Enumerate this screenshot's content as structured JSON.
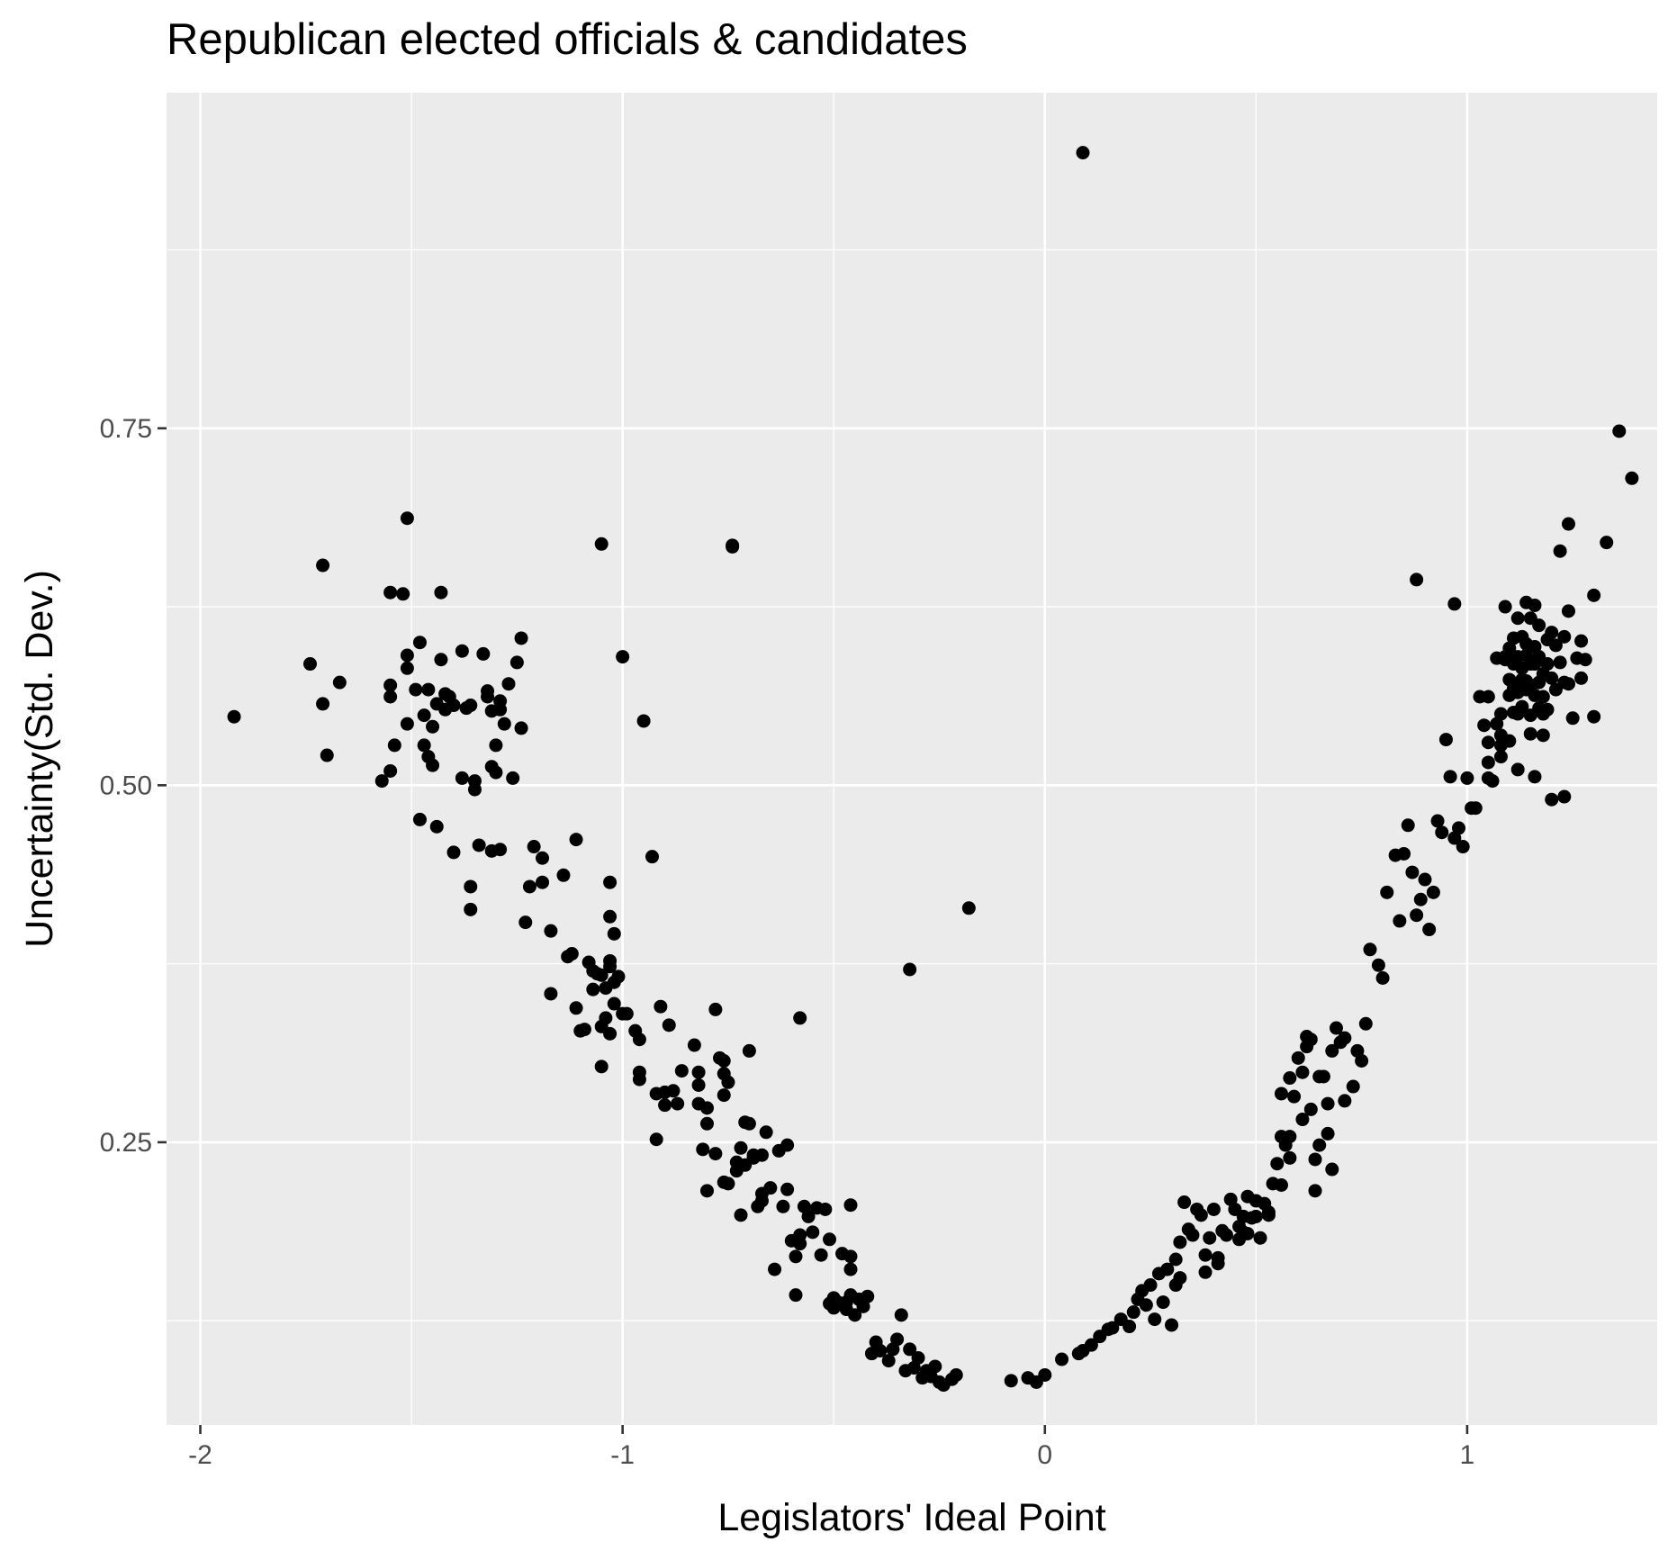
{
  "chart_data": {
    "type": "scatter",
    "title": "Republican elected officials & candidates",
    "xlabel": "Legislators' Ideal Point",
    "ylabel": "Uncertainty(Std. Dev.)",
    "xlim": [
      -2.08,
      1.45
    ],
    "ylim": [
      0.052,
      0.985
    ],
    "x_ticks": [
      -2,
      -1,
      0,
      1
    ],
    "x_tick_labels": [
      "-2",
      "-1",
      "0",
      "1"
    ],
    "y_ticks": [
      0.25,
      0.5,
      0.75
    ],
    "y_tick_labels": [
      "0.25",
      "0.50",
      "0.75"
    ],
    "grid": true,
    "legend": "none",
    "colors": {
      "panel": "#ebebeb",
      "grid": "#ffffff",
      "point": "#000000",
      "tick_label": "#4d4d4d"
    },
    "points": [
      [
        -1.92,
        0.548
      ],
      [
        -1.74,
        0.585
      ],
      [
        -1.71,
        0.654
      ],
      [
        -1.71,
        0.557
      ],
      [
        -1.7,
        0.521
      ],
      [
        -1.67,
        0.572
      ],
      [
        -1.57,
        0.503
      ],
      [
        -1.55,
        0.635
      ],
      [
        -1.55,
        0.57
      ],
      [
        -1.55,
        0.562
      ],
      [
        -1.55,
        0.51
      ],
      [
        -1.54,
        0.528
      ],
      [
        -1.51,
        0.687
      ],
      [
        -1.51,
        0.591
      ],
      [
        -1.51,
        0.582
      ],
      [
        -1.51,
        0.543
      ],
      [
        -1.49,
        0.567
      ],
      [
        -1.48,
        0.476
      ],
      [
        -1.48,
        0.6
      ],
      [
        -1.47,
        0.528
      ],
      [
        -1.47,
        0.549
      ],
      [
        -1.46,
        0.567
      ],
      [
        -1.46,
        0.52
      ],
      [
        -1.45,
        0.541
      ],
      [
        -1.45,
        0.514
      ],
      [
        -1.44,
        0.471
      ],
      [
        -1.44,
        0.557
      ],
      [
        -1.43,
        0.635
      ],
      [
        -1.43,
        0.588
      ],
      [
        -1.42,
        0.553
      ],
      [
        -1.42,
        0.564
      ],
      [
        -1.41,
        0.562
      ],
      [
        -1.4,
        0.556
      ],
      [
        -1.4,
        0.453
      ],
      [
        -1.38,
        0.594
      ],
      [
        -1.38,
        0.505
      ],
      [
        -1.37,
        0.554
      ],
      [
        -1.36,
        0.556
      ],
      [
        -1.36,
        0.429
      ],
      [
        -1.36,
        0.413
      ],
      [
        -1.35,
        0.497
      ],
      [
        -1.35,
        0.503
      ],
      [
        -1.34,
        0.458
      ],
      [
        -1.33,
        0.592
      ],
      [
        -1.32,
        0.566
      ],
      [
        -1.32,
        0.562
      ],
      [
        -1.31,
        0.454
      ],
      [
        -1.31,
        0.513
      ],
      [
        -1.31,
        0.552
      ],
      [
        -1.3,
        0.509
      ],
      [
        -1.3,
        0.528
      ],
      [
        -1.29,
        0.559
      ],
      [
        -1.29,
        0.553
      ],
      [
        -1.29,
        0.455
      ],
      [
        -1.28,
        0.543
      ],
      [
        -1.27,
        0.571
      ],
      [
        -1.26,
        0.505
      ],
      [
        -1.25,
        0.586
      ],
      [
        -1.24,
        0.54
      ],
      [
        -1.24,
        0.603
      ],
      [
        -1.23,
        0.404
      ],
      [
        -1.22,
        0.429
      ],
      [
        -1.21,
        0.457
      ],
      [
        -1.19,
        0.432
      ],
      [
        -1.19,
        0.449
      ],
      [
        -1.17,
        0.398
      ],
      [
        -1.17,
        0.354
      ],
      [
        -1.14,
        0.437
      ],
      [
        -1.13,
        0.38
      ],
      [
        -1.12,
        0.382
      ],
      [
        -1.11,
        0.462
      ],
      [
        -1.11,
        0.344
      ],
      [
        -1.1,
        0.328
      ],
      [
        -1.09,
        0.329
      ],
      [
        -1.08,
        0.376
      ],
      [
        -1.07,
        0.357
      ],
      [
        -1.07,
        0.37
      ],
      [
        -1.06,
        0.368
      ],
      [
        -1.05,
        0.669
      ],
      [
        -1.05,
        0.367
      ],
      [
        -1.05,
        0.303
      ],
      [
        -1.05,
        0.331
      ],
      [
        -1.04,
        0.337
      ],
      [
        -1.04,
        0.358
      ],
      [
        -1.03,
        0.373
      ],
      [
        -1.03,
        0.377
      ],
      [
        -1.03,
        0.408
      ],
      [
        -1.03,
        0.432
      ],
      [
        -1.03,
        0.326
      ],
      [
        -1.02,
        0.347
      ],
      [
        -1.02,
        0.396
      ],
      [
        -1.02,
        0.362
      ],
      [
        -1.01,
        0.366
      ],
      [
        -1.0,
        0.34
      ],
      [
        -1.0,
        0.59
      ],
      [
        -0.99,
        0.34
      ],
      [
        -0.97,
        0.328
      ],
      [
        -0.96,
        0.322
      ],
      [
        -0.96,
        0.294
      ],
      [
        -0.96,
        0.299
      ],
      [
        -0.95,
        0.545
      ],
      [
        -0.93,
        0.45
      ],
      [
        -0.92,
        0.284
      ],
      [
        -0.92,
        0.252
      ],
      [
        -0.91,
        0.345
      ],
      [
        -0.9,
        0.276
      ],
      [
        -0.9,
        0.285
      ],
      [
        -0.89,
        0.332
      ],
      [
        -0.88,
        0.286
      ],
      [
        -0.87,
        0.277
      ],
      [
        -0.86,
        0.3
      ],
      [
        -0.83,
        0.318
      ],
      [
        -0.82,
        0.277
      ],
      [
        -0.82,
        0.299
      ],
      [
        -0.82,
        0.29
      ],
      [
        -0.81,
        0.245
      ],
      [
        -0.8,
        0.274
      ],
      [
        -0.8,
        0.263
      ],
      [
        -0.8,
        0.216
      ],
      [
        -0.78,
        0.343
      ],
      [
        -0.78,
        0.242
      ],
      [
        -0.77,
        0.309
      ],
      [
        -0.76,
        0.298
      ],
      [
        -0.76,
        0.307
      ],
      [
        -0.76,
        0.283
      ],
      [
        -0.76,
        0.222
      ],
      [
        -0.75,
        0.292
      ],
      [
        -0.75,
        0.221
      ],
      [
        -0.74,
        0.668
      ],
      [
        -0.73,
        0.236
      ],
      [
        -0.73,
        0.23
      ],
      [
        -0.72,
        0.199
      ],
      [
        -0.72,
        0.246
      ],
      [
        -0.71,
        0.234
      ],
      [
        -0.71,
        0.264
      ],
      [
        -0.7,
        0.263
      ],
      [
        -0.7,
        0.314
      ],
      [
        -0.69,
        0.241
      ],
      [
        -0.69,
        0.239
      ],
      [
        -0.68,
        0.205
      ],
      [
        -0.67,
        0.209
      ],
      [
        -0.67,
        0.214
      ],
      [
        -0.67,
        0.241
      ],
      [
        -0.66,
        0.257
      ],
      [
        -0.65,
        0.218
      ],
      [
        -0.64,
        0.161
      ],
      [
        -0.63,
        0.244
      ],
      [
        -0.62,
        0.205
      ],
      [
        -0.61,
        0.217
      ],
      [
        -0.61,
        0.248
      ],
      [
        -0.6,
        0.181
      ],
      [
        -0.59,
        0.17
      ],
      [
        -0.59,
        0.143
      ],
      [
        -0.58,
        0.337
      ],
      [
        -0.58,
        0.185
      ],
      [
        -0.58,
        0.179
      ],
      [
        -0.57,
        0.205
      ],
      [
        -0.56,
        0.198
      ],
      [
        -0.55,
        0.187
      ],
      [
        -0.54,
        0.204
      ],
      [
        -0.53,
        0.171
      ],
      [
        -0.52,
        0.203
      ],
      [
        -0.51,
        0.182
      ],
      [
        -0.51,
        0.137
      ],
      [
        -0.5,
        0.134
      ],
      [
        -0.5,
        0.141
      ],
      [
        -0.49,
        0.138
      ],
      [
        -0.48,
        0.172
      ],
      [
        -0.47,
        0.133
      ],
      [
        -0.47,
        0.138
      ],
      [
        -0.46,
        0.206
      ],
      [
        -0.46,
        0.161
      ],
      [
        -0.46,
        0.17
      ],
      [
        -0.46,
        0.143
      ],
      [
        -0.45,
        0.129
      ],
      [
        -0.44,
        0.14
      ],
      [
        -0.43,
        0.135
      ],
      [
        -0.42,
        0.142
      ],
      [
        -0.41,
        0.102
      ],
      [
        -0.4,
        0.11
      ],
      [
        -0.39,
        0.104
      ],
      [
        -0.37,
        0.097
      ],
      [
        -0.36,
        0.105
      ],
      [
        -0.35,
        0.112
      ],
      [
        -0.34,
        0.129
      ],
      [
        -0.33,
        0.09
      ],
      [
        -0.32,
        0.105
      ],
      [
        -0.32,
        0.371
      ],
      [
        -0.31,
        0.092
      ],
      [
        -0.3,
        0.099
      ],
      [
        -0.29,
        0.085
      ],
      [
        -0.28,
        0.09
      ],
      [
        -0.27,
        0.086
      ],
      [
        -0.26,
        0.093
      ],
      [
        -0.25,
        0.082
      ],
      [
        -0.24,
        0.08
      ],
      [
        -0.22,
        0.084
      ],
      [
        -0.21,
        0.087
      ],
      [
        -0.18,
        0.414
      ],
      [
        -0.08,
        0.083
      ],
      [
        -0.04,
        0.085
      ],
      [
        -0.02,
        0.082
      ],
      [
        0.0,
        0.087
      ],
      [
        0.04,
        0.098
      ],
      [
        0.08,
        0.102
      ],
      [
        0.09,
        0.104
      ],
      [
        0.11,
        0.108
      ],
      [
        0.13,
        0.114
      ],
      [
        0.15,
        0.119
      ],
      [
        0.16,
        0.12
      ],
      [
        0.18,
        0.126
      ],
      [
        0.2,
        0.121
      ],
      [
        0.21,
        0.131
      ],
      [
        0.22,
        0.14
      ],
      [
        0.23,
        0.146
      ],
      [
        0.24,
        0.136
      ],
      [
        0.25,
        0.15
      ],
      [
        0.26,
        0.126
      ],
      [
        0.27,
        0.158
      ],
      [
        0.28,
        0.138
      ],
      [
        0.29,
        0.161
      ],
      [
        0.3,
        0.122
      ],
      [
        0.31,
        0.15
      ],
      [
        0.31,
        0.168
      ],
      [
        0.32,
        0.155
      ],
      [
        0.32,
        0.18
      ],
      [
        0.33,
        0.208
      ],
      [
        0.34,
        0.189
      ],
      [
        0.35,
        0.185
      ],
      [
        0.36,
        0.203
      ],
      [
        0.37,
        0.199
      ],
      [
        0.38,
        0.159
      ],
      [
        0.38,
        0.171
      ],
      [
        0.39,
        0.183
      ],
      [
        0.4,
        0.203
      ],
      [
        0.41,
        0.169
      ],
      [
        0.41,
        0.165
      ],
      [
        0.42,
        0.188
      ],
      [
        0.43,
        0.185
      ],
      [
        0.44,
        0.21
      ],
      [
        0.45,
        0.203
      ],
      [
        0.46,
        0.182
      ],
      [
        0.46,
        0.191
      ],
      [
        0.47,
        0.198
      ],
      [
        0.47,
        0.187
      ],
      [
        0.48,
        0.186
      ],
      [
        0.48,
        0.212
      ],
      [
        0.49,
        0.197
      ],
      [
        0.5,
        0.198
      ],
      [
        0.5,
        0.209
      ],
      [
        0.51,
        0.183
      ],
      [
        0.52,
        0.207
      ],
      [
        0.53,
        0.201
      ],
      [
        0.53,
        0.199
      ],
      [
        0.54,
        0.221
      ],
      [
        0.55,
        0.235
      ],
      [
        0.56,
        0.22
      ],
      [
        0.56,
        0.254
      ],
      [
        0.56,
        0.284
      ],
      [
        0.57,
        0.248
      ],
      [
        0.58,
        0.239
      ],
      [
        0.58,
        0.295
      ],
      [
        0.58,
        0.254
      ],
      [
        0.59,
        0.282
      ],
      [
        0.6,
        0.309
      ],
      [
        0.61,
        0.299
      ],
      [
        0.61,
        0.266
      ],
      [
        0.62,
        0.317
      ],
      [
        0.62,
        0.324
      ],
      [
        0.63,
        0.273
      ],
      [
        0.63,
        0.322
      ],
      [
        0.64,
        0.216
      ],
      [
        0.64,
        0.238
      ],
      [
        0.65,
        0.248
      ],
      [
        0.65,
        0.296
      ],
      [
        0.66,
        0.296
      ],
      [
        0.67,
        0.277
      ],
      [
        0.67,
        0.256
      ],
      [
        0.68,
        0.231
      ],
      [
        0.68,
        0.314
      ],
      [
        0.69,
        0.33
      ],
      [
        0.7,
        0.32
      ],
      [
        0.71,
        0.323
      ],
      [
        0.71,
        0.279
      ],
      [
        0.73,
        0.289
      ],
      [
        0.74,
        0.314
      ],
      [
        0.75,
        0.307
      ],
      [
        0.76,
        0.333
      ],
      [
        0.77,
        0.385
      ],
      [
        0.79,
        0.374
      ],
      [
        0.8,
        0.365
      ],
      [
        0.81,
        0.425
      ],
      [
        0.83,
        0.451
      ],
      [
        0.84,
        0.405
      ],
      [
        0.85,
        0.452
      ],
      [
        0.86,
        0.472
      ],
      [
        0.87,
        0.439
      ],
      [
        0.88,
        0.644
      ],
      [
        0.88,
        0.409
      ],
      [
        0.89,
        0.42
      ],
      [
        0.9,
        0.434
      ],
      [
        0.91,
        0.399
      ],
      [
        0.92,
        0.425
      ],
      [
        0.93,
        0.475
      ],
      [
        0.94,
        0.467
      ],
      [
        0.95,
        0.532
      ],
      [
        0.96,
        0.506
      ],
      [
        0.97,
        0.463
      ],
      [
        0.97,
        0.627
      ],
      [
        0.98,
        0.47
      ],
      [
        0.99,
        0.457
      ],
      [
        1.0,
        0.505
      ],
      [
        1.01,
        0.484
      ],
      [
        1.02,
        0.484
      ],
      [
        1.03,
        0.562
      ],
      [
        1.04,
        0.542
      ],
      [
        1.05,
        0.53
      ],
      [
        1.05,
        0.562
      ],
      [
        1.05,
        0.516
      ],
      [
        1.05,
        0.505
      ],
      [
        1.06,
        0.503
      ],
      [
        1.07,
        0.543
      ],
      [
        1.07,
        0.589
      ],
      [
        1.08,
        0.52
      ],
      [
        1.08,
        0.528
      ],
      [
        1.08,
        0.535
      ],
      [
        1.08,
        0.55
      ],
      [
        1.09,
        0.588
      ],
      [
        1.09,
        0.625
      ],
      [
        1.09,
        0.59
      ],
      [
        1.1,
        0.563
      ],
      [
        1.1,
        0.531
      ],
      [
        1.1,
        0.574
      ],
      [
        1.1,
        0.596
      ],
      [
        1.11,
        0.551
      ],
      [
        1.11,
        0.568
      ],
      [
        1.11,
        0.585
      ],
      [
        1.11,
        0.603
      ],
      [
        1.12,
        0.57
      ],
      [
        1.12,
        0.565
      ],
      [
        1.12,
        0.59
      ],
      [
        1.12,
        0.511
      ],
      [
        1.12,
        0.617
      ],
      [
        1.12,
        0.55
      ],
      [
        1.13,
        0.574
      ],
      [
        1.13,
        0.555
      ],
      [
        1.13,
        0.582
      ],
      [
        1.13,
        0.604
      ],
      [
        1.14,
        0.573
      ],
      [
        1.14,
        0.628
      ],
      [
        1.14,
        0.591
      ],
      [
        1.14,
        0.567
      ],
      [
        1.14,
        0.599
      ],
      [
        1.15,
        0.585
      ],
      [
        1.15,
        0.549
      ],
      [
        1.15,
        0.617
      ],
      [
        1.15,
        0.57
      ],
      [
        1.15,
        0.536
      ],
      [
        1.16,
        0.585
      ],
      [
        1.16,
        0.563
      ],
      [
        1.16,
        0.626
      ],
      [
        1.16,
        0.597
      ],
      [
        1.16,
        0.506
      ],
      [
        1.17,
        0.572
      ],
      [
        1.17,
        0.612
      ],
      [
        1.17,
        0.59
      ],
      [
        1.17,
        0.554
      ],
      [
        1.18,
        0.562
      ],
      [
        1.18,
        0.55
      ],
      [
        1.18,
        0.535
      ],
      [
        1.18,
        0.578
      ],
      [
        1.19,
        0.602
      ],
      [
        1.19,
        0.585
      ],
      [
        1.19,
        0.553
      ],
      [
        1.2,
        0.575
      ],
      [
        1.2,
        0.607
      ],
      [
        1.2,
        0.49
      ],
      [
        1.21,
        0.567
      ],
      [
        1.21,
        0.598
      ],
      [
        1.22,
        0.664
      ],
      [
        1.22,
        0.586
      ],
      [
        1.23,
        0.572
      ],
      [
        1.23,
        0.492
      ],
      [
        1.23,
        0.604
      ],
      [
        1.24,
        0.571
      ],
      [
        1.24,
        0.683
      ],
      [
        1.24,
        0.622
      ],
      [
        1.25,
        0.547
      ],
      [
        1.26,
        0.589
      ],
      [
        1.27,
        0.601
      ],
      [
        1.27,
        0.575
      ],
      [
        1.28,
        0.588
      ],
      [
        1.3,
        0.548
      ],
      [
        1.3,
        0.633
      ],
      [
        1.33,
        0.67
      ],
      [
        1.36,
        0.748
      ],
      [
        1.39,
        0.715
      ],
      [
        -0.74,
        0.667
      ],
      [
        -1.52,
        0.634
      ]
    ],
    "outliers": [
      [
        0.09,
        0.943
      ]
    ]
  }
}
